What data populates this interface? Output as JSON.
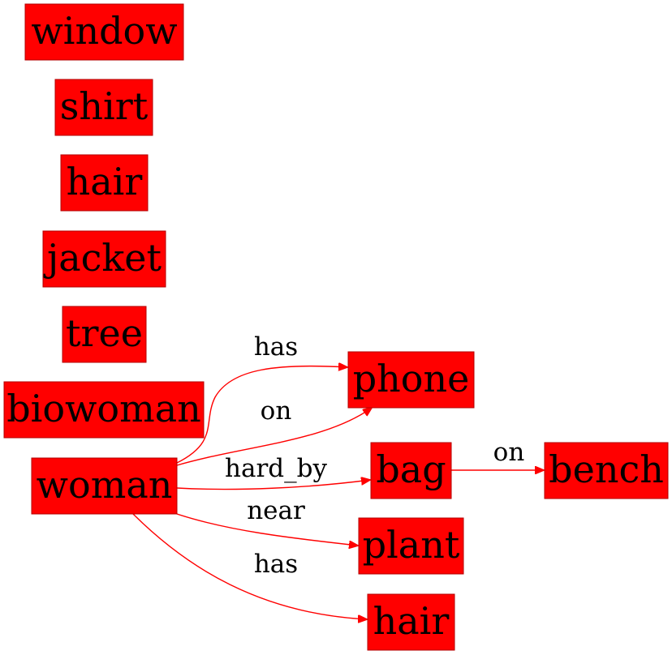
{
  "colors": {
    "node_fill": "#ff0000",
    "edge_color": "#ff0000",
    "text": "#000000"
  },
  "nodes": [
    {
      "id": "window",
      "label": "window"
    },
    {
      "id": "shirt",
      "label": "shirt"
    },
    {
      "id": "hair1",
      "label": "hair"
    },
    {
      "id": "jacket",
      "label": "jacket"
    },
    {
      "id": "tree",
      "label": "tree"
    },
    {
      "id": "biowoman",
      "label": "biowoman"
    },
    {
      "id": "woman",
      "label": "woman"
    },
    {
      "id": "phone",
      "label": "phone"
    },
    {
      "id": "bag",
      "label": "bag"
    },
    {
      "id": "bench",
      "label": "bench"
    },
    {
      "id": "plant",
      "label": "plant"
    },
    {
      "id": "hair2",
      "label": "hair"
    }
  ],
  "edges": [
    {
      "id": "e1",
      "from": "woman",
      "to": "phone",
      "label": "has"
    },
    {
      "id": "e2",
      "from": "woman",
      "to": "phone",
      "label": "on"
    },
    {
      "id": "e3",
      "from": "woman",
      "to": "bag",
      "label": "hard_by"
    },
    {
      "id": "e4",
      "from": "woman",
      "to": "plant",
      "label": "near"
    },
    {
      "id": "e5",
      "from": "woman",
      "to": "hair2",
      "label": "has"
    },
    {
      "id": "e6",
      "from": "bag",
      "to": "bench",
      "label": "on"
    }
  ]
}
